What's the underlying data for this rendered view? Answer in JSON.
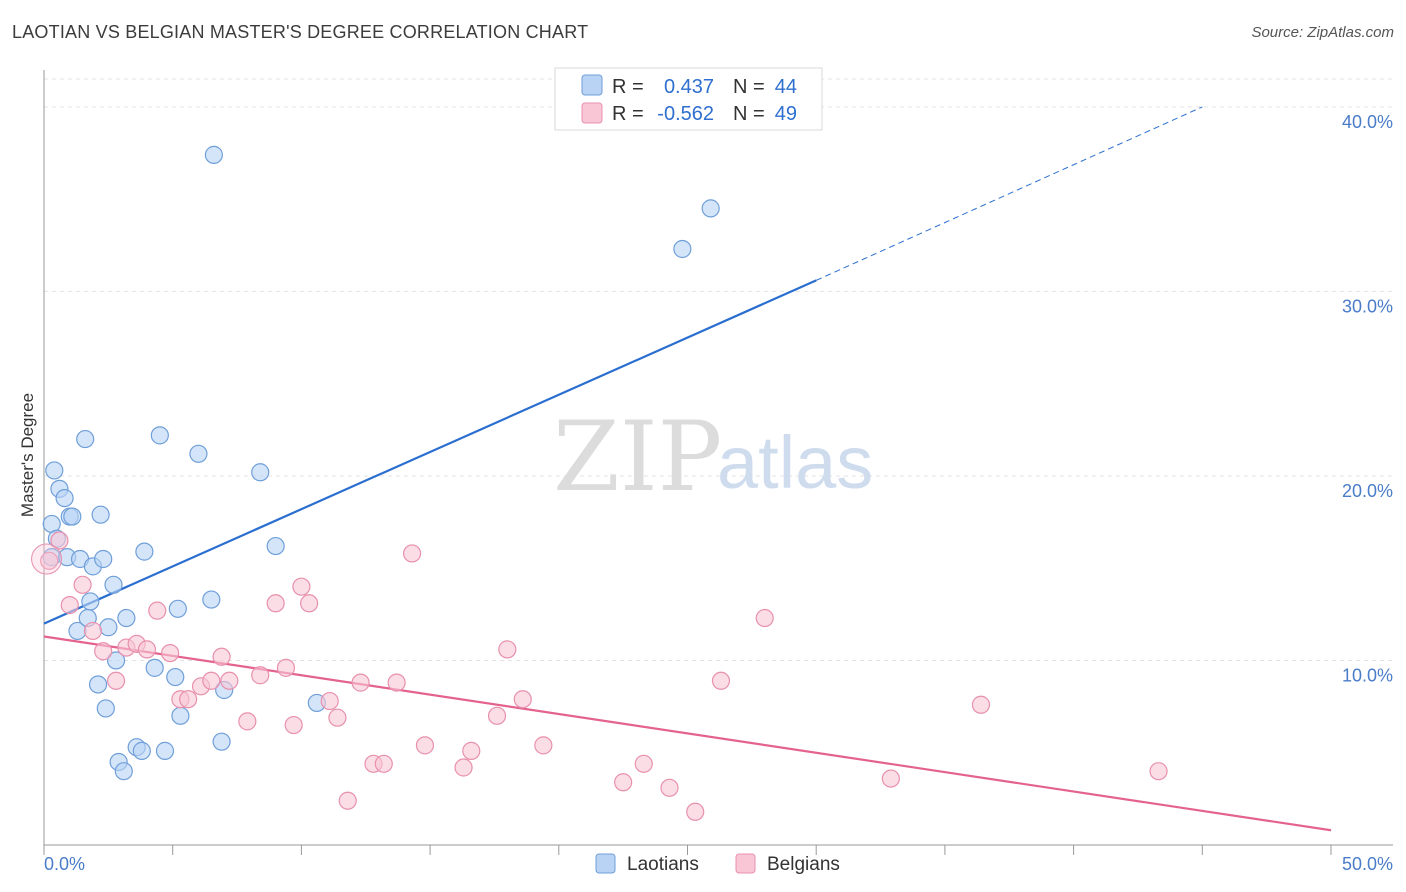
{
  "header": {
    "title": "LAOTIAN VS BELGIAN MASTER'S DEGREE CORRELATION CHART",
    "source": "Source: ZipAtlas.com"
  },
  "watermark": {
    "zip": "ZIP",
    "atlas": "atlas"
  },
  "chart_data": {
    "type": "scatter",
    "title": "LAOTIAN VS BELGIAN MASTER'S DEGREE CORRELATION CHART",
    "xlabel": "",
    "ylabel": "Master's Degree",
    "xlim": [
      0,
      50
    ],
    "ylim": [
      0,
      42
    ],
    "x_tick_labels": {
      "left": "0.0%",
      "right": "50.0%"
    },
    "y_ticks": [
      {
        "value": 10,
        "label": "10.0%"
      },
      {
        "value": 20,
        "label": "20.0%"
      },
      {
        "value": 30,
        "label": "30.0%"
      },
      {
        "value": 40,
        "label": "40.0%"
      }
    ],
    "legend": {
      "placement": "top-center",
      "r_label": "R =",
      "n_label": "N =",
      "rows": [
        {
          "series": "Laotians",
          "r": "0.437",
          "n": "44"
        },
        {
          "series": "Belgians",
          "r": "-0.562",
          "n": "49"
        }
      ]
    },
    "colors": {
      "Laotians_fill": "#b9d3f5",
      "Laotians_stroke": "#6f9fd9",
      "Laotians_line": "#2a6fcf",
      "Belgians_fill": "#f9c6d6",
      "Belgians_stroke": "#e890ad",
      "Belgians_line": "#e4628e"
    },
    "series": [
      {
        "name": "Laotians",
        "trend": {
          "x0": 0,
          "y0": 12.0,
          "x1": 30,
          "y1": 30.6,
          "dash_to_x": 45,
          "dash_to_y": 40.0
        },
        "points": [
          [
            0.3,
            15.6
          ],
          [
            0.3,
            17.4
          ],
          [
            0.4,
            20.3
          ],
          [
            0.5,
            16.6
          ],
          [
            0.6,
            19.3
          ],
          [
            0.8,
            18.8
          ],
          [
            0.9,
            15.6
          ],
          [
            1.0,
            17.8
          ],
          [
            1.1,
            17.8
          ],
          [
            1.3,
            11.6
          ],
          [
            1.4,
            15.5
          ],
          [
            1.6,
            22.0
          ],
          [
            1.7,
            12.3
          ],
          [
            1.8,
            13.2
          ],
          [
            1.9,
            15.1
          ],
          [
            2.1,
            8.7
          ],
          [
            2.2,
            17.9
          ],
          [
            2.3,
            15.5
          ],
          [
            2.4,
            7.4
          ],
          [
            2.5,
            11.8
          ],
          [
            2.7,
            14.1
          ],
          [
            2.8,
            10.0
          ],
          [
            2.9,
            4.5
          ],
          [
            3.1,
            4.0
          ],
          [
            3.2,
            12.3
          ],
          [
            3.6,
            5.3
          ],
          [
            3.8,
            5.1
          ],
          [
            3.9,
            15.9
          ],
          [
            4.3,
            9.6
          ],
          [
            4.5,
            22.2
          ],
          [
            4.7,
            5.1
          ],
          [
            5.1,
            9.1
          ],
          [
            5.2,
            12.8
          ],
          [
            5.3,
            7.0
          ],
          [
            6.0,
            21.2
          ],
          [
            6.5,
            13.3
          ],
          [
            6.6,
            37.4
          ],
          [
            6.9,
            5.6
          ],
          [
            7.0,
            8.4
          ],
          [
            8.4,
            20.2
          ],
          [
            9.0,
            16.2
          ],
          [
            10.6,
            7.7
          ],
          [
            24.8,
            32.3
          ],
          [
            25.9,
            34.5
          ]
        ]
      },
      {
        "name": "Belgians",
        "trend": {
          "x0": 0,
          "y0": 11.3,
          "x1": 50,
          "y1": 0.8
        },
        "points": [
          [
            0.2,
            15.4
          ],
          [
            0.6,
            16.5
          ],
          [
            1.0,
            13.0
          ],
          [
            1.5,
            14.1
          ],
          [
            1.9,
            11.6
          ],
          [
            2.3,
            10.5
          ],
          [
            2.8,
            8.9
          ],
          [
            3.2,
            10.7
          ],
          [
            3.6,
            10.9
          ],
          [
            4.0,
            10.6
          ],
          [
            4.4,
            12.7
          ],
          [
            4.9,
            10.4
          ],
          [
            5.3,
            7.9
          ],
          [
            5.6,
            7.9
          ],
          [
            6.1,
            8.6
          ],
          [
            6.5,
            8.9
          ],
          [
            6.9,
            10.2
          ],
          [
            7.2,
            8.9
          ],
          [
            7.9,
            6.7
          ],
          [
            8.4,
            9.2
          ],
          [
            9.0,
            13.1
          ],
          [
            9.4,
            9.6
          ],
          [
            9.7,
            6.5
          ],
          [
            10.0,
            14.0
          ],
          [
            10.3,
            13.1
          ],
          [
            11.1,
            7.8
          ],
          [
            11.4,
            6.9
          ],
          [
            11.8,
            2.4
          ],
          [
            12.3,
            8.8
          ],
          [
            12.8,
            4.4
          ],
          [
            13.2,
            4.4
          ],
          [
            13.7,
            8.8
          ],
          [
            14.3,
            15.8
          ],
          [
            14.8,
            5.4
          ],
          [
            16.3,
            4.2
          ],
          [
            16.6,
            5.1
          ],
          [
            17.6,
            7.0
          ],
          [
            18.0,
            10.6
          ],
          [
            18.6,
            7.9
          ],
          [
            19.4,
            5.4
          ],
          [
            22.5,
            3.4
          ],
          [
            23.3,
            4.4
          ],
          [
            24.3,
            3.1
          ],
          [
            25.3,
            1.8
          ],
          [
            26.3,
            8.9
          ],
          [
            28.0,
            12.3
          ],
          [
            32.9,
            3.6
          ],
          [
            36.4,
            7.6
          ],
          [
            43.3,
            4.0
          ]
        ]
      }
    ]
  }
}
